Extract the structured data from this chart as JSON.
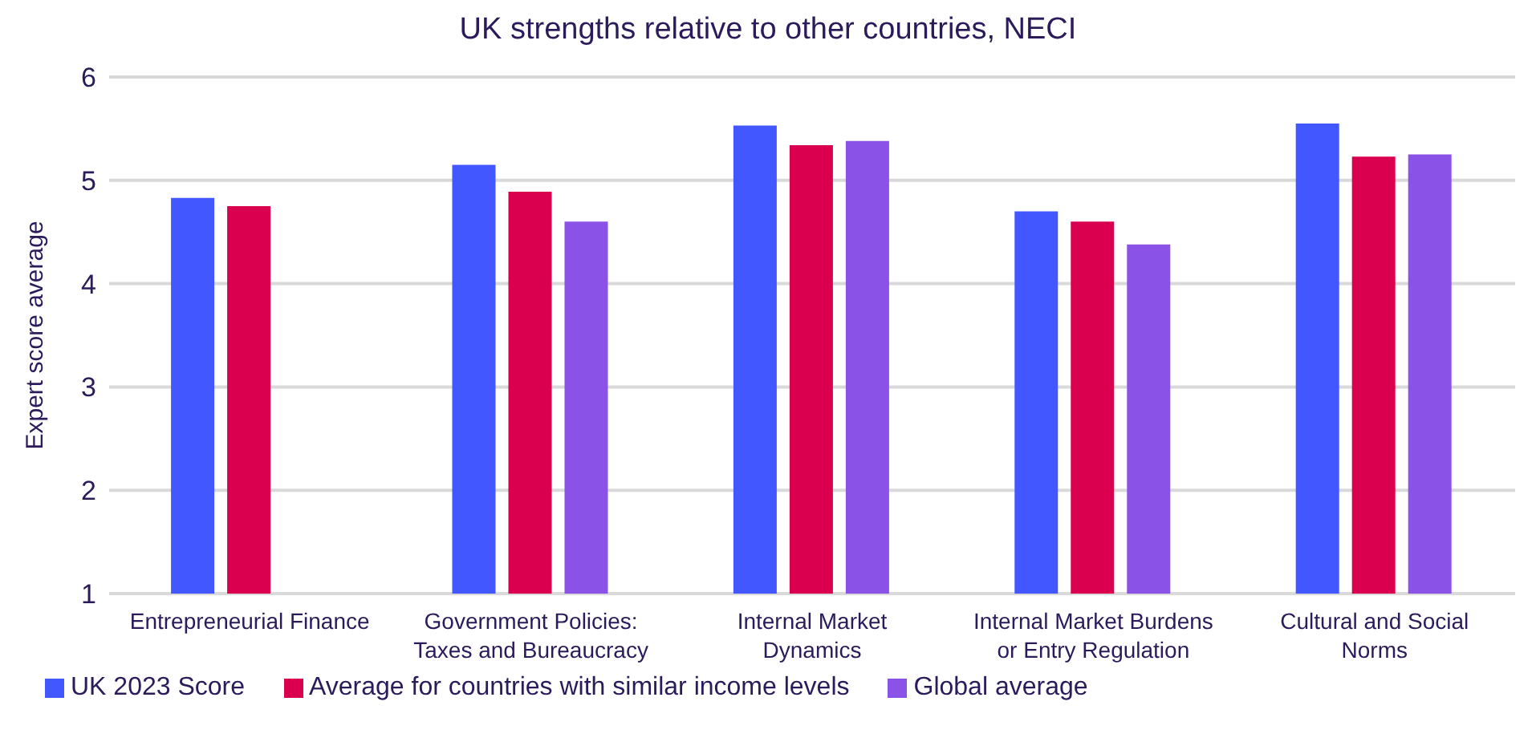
{
  "chart_data": {
    "type": "bar",
    "title": "UK strengths relative to other countries, NECI",
    "ylabel": "Expert score average",
    "categories": [
      "Entrepreneurial Finance",
      "Government Policies: Taxes and Bureaucracy",
      "Internal Market Dynamics",
      "Internal Market Burdens or Entry Regulation",
      "Cultural and Social Norms"
    ],
    "series": [
      {
        "name": "UK 2023 Score",
        "color": "#4257ff",
        "values": [
          4.83,
          5.15,
          5.53,
          4.7,
          5.55
        ]
      },
      {
        "name": "Average for countries with similar income levels",
        "color": "#db004f",
        "values": [
          4.75,
          4.89,
          5.34,
          4.6,
          5.23
        ]
      },
      {
        "name": "Global average",
        "color": "#8b52e8",
        "values": [
          null,
          4.6,
          5.38,
          4.38,
          5.25
        ]
      }
    ],
    "ylim": [
      1,
      6
    ],
    "yticks": [
      1,
      2,
      3,
      4,
      5,
      6
    ],
    "grid": "y",
    "legend": "bottom"
  }
}
